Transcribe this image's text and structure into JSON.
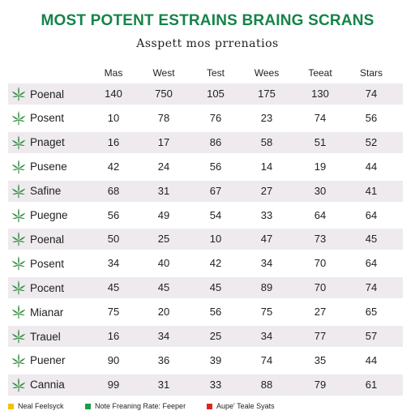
{
  "colors": {
    "title": "#16834a",
    "text": "#1f1f1f",
    "leaf": "#2f8a3a",
    "row_shade": "#eeeaee",
    "row_plain": "#ffffff"
  },
  "chart_data": {
    "type": "table",
    "title": "MOST POTENT ESTRAINS BRAING SCRANS",
    "subtitle": "Asspett mos prrenatios",
    "columns": [
      "Mas",
      "West",
      "Test",
      "Wees",
      "Teeat",
      "Stars"
    ],
    "rows": [
      {
        "name": "Poenal",
        "values": [
          "140",
          "750",
          "105",
          "175",
          "130",
          "74"
        ]
      },
      {
        "name": "Posent",
        "values": [
          "10",
          "78",
          "76",
          "23",
          "74",
          "56"
        ]
      },
      {
        "name": "Pnaget",
        "values": [
          "16",
          "17",
          "86",
          "58",
          "51",
          "52"
        ]
      },
      {
        "name": "Pusene",
        "values": [
          "42",
          "24",
          "56",
          "14",
          "19",
          "44"
        ]
      },
      {
        "name": "Safine",
        "values": [
          "68",
          "31",
          "67",
          "27",
          "30",
          "41"
        ]
      },
      {
        "name": "Puegne",
        "values": [
          "56",
          "49",
          "54",
          "33",
          "64",
          "64"
        ]
      },
      {
        "name": "Poenal",
        "values": [
          "50",
          "25",
          "10",
          "47",
          "73",
          "45"
        ]
      },
      {
        "name": "Posent",
        "values": [
          "34",
          "40",
          "42",
          "34",
          "70",
          "64"
        ]
      },
      {
        "name": "Pocent",
        "values": [
          "45",
          "45",
          "45",
          "89",
          "70",
          "74"
        ]
      },
      {
        "name": "Mianar",
        "values": [
          "75",
          "20",
          "56",
          "75",
          "27",
          "65"
        ]
      },
      {
        "name": "Trauel",
        "values": [
          "16",
          "34",
          "25",
          "34",
          "77",
          "57"
        ]
      },
      {
        "name": "Puener",
        "values": [
          "90",
          "36",
          "39",
          "74",
          "35",
          "44"
        ]
      },
      {
        "name": "Cannia",
        "values": [
          "99",
          "31",
          "33",
          "88",
          "79",
          "61"
        ]
      }
    ],
    "legend": [
      {
        "label": "Neal Feelsyck",
        "color": "#f2c200"
      },
      {
        "label": "Note Freaning Rate: Feeper",
        "color": "#1d9b4a"
      },
      {
        "label": "Aupe' Teale Syats",
        "color": "#e02424"
      }
    ],
    "row_icon": "cannabis-leaf-icon"
  }
}
